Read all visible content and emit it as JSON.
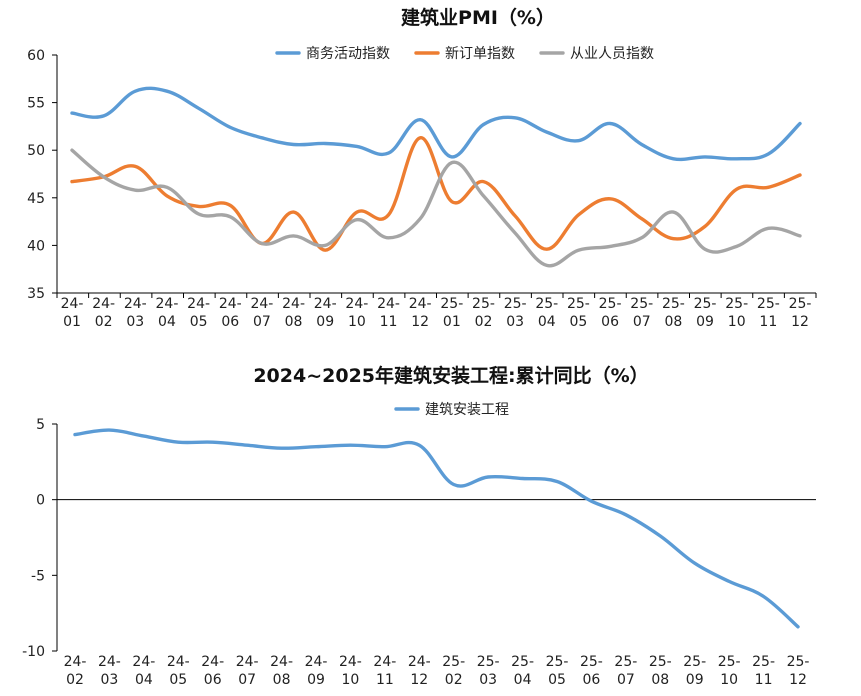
{
  "chart_data": [
    {
      "type": "line",
      "title": "建筑业PMI（%）",
      "categories": [
        [
          "24-",
          "01"
        ],
        [
          "24-",
          "02"
        ],
        [
          "24-",
          "03"
        ],
        [
          "24-",
          "04"
        ],
        [
          "24-",
          "05"
        ],
        [
          "24-",
          "06"
        ],
        [
          "24-",
          "07"
        ],
        [
          "24-",
          "08"
        ],
        [
          "24-",
          "09"
        ],
        [
          "24-",
          "10"
        ],
        [
          "24-",
          "11"
        ],
        [
          "24-",
          "12"
        ],
        [
          "25-",
          "01"
        ],
        [
          "25-",
          "02"
        ],
        [
          "25-",
          "03"
        ],
        [
          "25-",
          "04"
        ],
        [
          "25-",
          "05"
        ],
        [
          "25-",
          "06"
        ],
        [
          "25-",
          "07"
        ],
        [
          "25-",
          "08"
        ],
        [
          "25-",
          "09"
        ],
        [
          "25-",
          "10"
        ],
        [
          "25-",
          "11"
        ],
        [
          "25-",
          "12"
        ]
      ],
      "ylim": [
        35,
        60
      ],
      "yticks": [
        "60",
        "55",
        "50",
        "45",
        "40",
        "35"
      ],
      "series": [
        {
          "name": "商务活动指数",
          "color": "#5B9BD5",
          "values": [
            53.9,
            53.6,
            56.2,
            56.2,
            54.4,
            52.4,
            51.3,
            50.6,
            50.7,
            50.4,
            49.7,
            53.2,
            49.3,
            52.7,
            53.4,
            51.9,
            51.0,
            52.8,
            50.6,
            49.1,
            49.3,
            49.1,
            49.6,
            52.8
          ]
        },
        {
          "name": "新订单指数",
          "color": "#ED7D31",
          "values": [
            46.7,
            47.2,
            48.3,
            45.2,
            44.1,
            44.2,
            40.2,
            43.5,
            39.5,
            43.5,
            43.2,
            51.3,
            44.6,
            46.7,
            43.1,
            39.6,
            43.2,
            44.9,
            42.8,
            40.7,
            42.0,
            45.9,
            46.1,
            47.4
          ]
        },
        {
          "name": "从业人员指数",
          "color": "#A5A5A5",
          "values": [
            50.0,
            47.2,
            45.8,
            46.1,
            43.3,
            43.0,
            40.2,
            41.0,
            40.0,
            42.7,
            40.8,
            42.8,
            48.7,
            45.2,
            41.3,
            37.9,
            39.5,
            39.9,
            40.8,
            43.5,
            39.6,
            39.9,
            41.8,
            41.0
          ]
        }
      ]
    },
    {
      "type": "line",
      "title": "2024~2025年建筑安装工程:累计同比（%）",
      "categories": [
        [
          "24-",
          "02"
        ],
        [
          "24-",
          "03"
        ],
        [
          "24-",
          "04"
        ],
        [
          "24-",
          "05"
        ],
        [
          "24-",
          "06"
        ],
        [
          "24-",
          "07"
        ],
        [
          "24-",
          "08"
        ],
        [
          "24-",
          "09"
        ],
        [
          "24-",
          "10"
        ],
        [
          "24-",
          "11"
        ],
        [
          "24-",
          "12"
        ],
        [
          "25-",
          "02"
        ],
        [
          "25-",
          "03"
        ],
        [
          "25-",
          "04"
        ],
        [
          "25-",
          "05"
        ],
        [
          "25-",
          "06"
        ],
        [
          "25-",
          "07"
        ],
        [
          "25-",
          "08"
        ],
        [
          "25-",
          "09"
        ],
        [
          "25-",
          "10"
        ],
        [
          "25-",
          "11"
        ],
        [
          "25-",
          "12"
        ]
      ],
      "ylim": [
        -10,
        5
      ],
      "yticks": [
        "5",
        "0",
        "-5",
        "-10"
      ],
      "series": [
        {
          "name": "建筑安装工程",
          "color": "#5B9BD5",
          "values": [
            4.3,
            4.6,
            4.2,
            3.8,
            3.8,
            3.6,
            3.4,
            3.5,
            3.6,
            3.5,
            3.6,
            1.0,
            1.5,
            1.4,
            1.2,
            -0.1,
            -1.0,
            -2.4,
            -4.2,
            -5.4,
            -6.4,
            -8.4
          ]
        }
      ]
    }
  ]
}
